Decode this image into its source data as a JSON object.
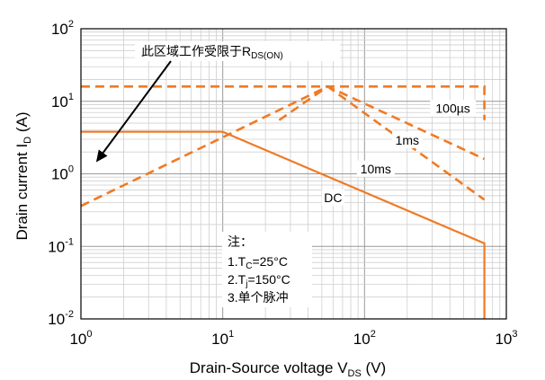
{
  "chart_data": {
    "type": "line",
    "title": "",
    "xlabel": {
      "main": "Drain-Source voltage V",
      "sub": "DS",
      "unit": " (V)"
    },
    "ylabel": {
      "main": "Drain current I",
      "sub": "D",
      "unit": " (A)"
    },
    "xscale": "log",
    "yscale": "log",
    "xlim": [
      1,
      1000
    ],
    "ylim": [
      0.01,
      100
    ],
    "grid": true,
    "x_ticks": [
      {
        "base": "10",
        "exp": "0",
        "value": 1
      },
      {
        "base": "10",
        "exp": "1",
        "value": 10
      },
      {
        "base": "10",
        "exp": "2",
        "value": 100
      },
      {
        "base": "10",
        "exp": "3",
        "value": 1000
      }
    ],
    "y_ticks": [
      {
        "base": "10",
        "exp": "-2",
        "value": 0.01
      },
      {
        "base": "10",
        "exp": "-1",
        "value": 0.1
      },
      {
        "base": "10",
        "exp": "0",
        "value": 1
      },
      {
        "base": "10",
        "exp": "1",
        "value": 10
      },
      {
        "base": "10",
        "exp": "2",
        "value": 100
      }
    ],
    "series": [
      {
        "label": "DC",
        "style": "solid",
        "x": [
          1,
          10,
          700,
          700
        ],
        "y": [
          3.8,
          3.8,
          0.11,
          0.01
        ]
      },
      {
        "label": "10ms",
        "style": "dashed",
        "x": [
          1,
          55,
          700
        ],
        "y": [
          0.36,
          16,
          0.44
        ]
      },
      {
        "label": "1ms",
        "style": "dashed",
        "x": [
          25,
          55,
          700
        ],
        "y": [
          5.5,
          16,
          1.6
        ]
      },
      {
        "label": "100µs",
        "style": "dashed",
        "x": [
          1,
          700,
          700
        ],
        "y": [
          16,
          16,
          5.5
        ]
      }
    ],
    "curve_labels": [
      {
        "text": "100µs",
        "x": 420,
        "y": 7.2
      },
      {
        "text": "1ms",
        "x": 200,
        "y": 2.6
      },
      {
        "text": "10ms",
        "x": 120,
        "y": 1.05
      },
      {
        "text": "DC",
        "x": 60,
        "y": 0.42
      }
    ],
    "annotation": {
      "text": "此区域工作受限于R",
      "sub": "DS(ON)",
      "arrow_to": {
        "x": 1.28,
        "y": 1.45
      }
    },
    "note": {
      "title": "注：",
      "lines": [
        {
          "pre": "1.T",
          "sub": "C",
          "post": "=25°C"
        },
        {
          "pre": "2.T",
          "sub": "j",
          "post": "=150°C"
        },
        {
          "pre": "3.单个脉冲",
          "sub": "",
          "post": ""
        }
      ]
    },
    "colors": {
      "curve": "#f07a24",
      "grid_major": "#9a9a9a",
      "grid_minor": "#cfcfcf",
      "axis": "#000000"
    }
  }
}
